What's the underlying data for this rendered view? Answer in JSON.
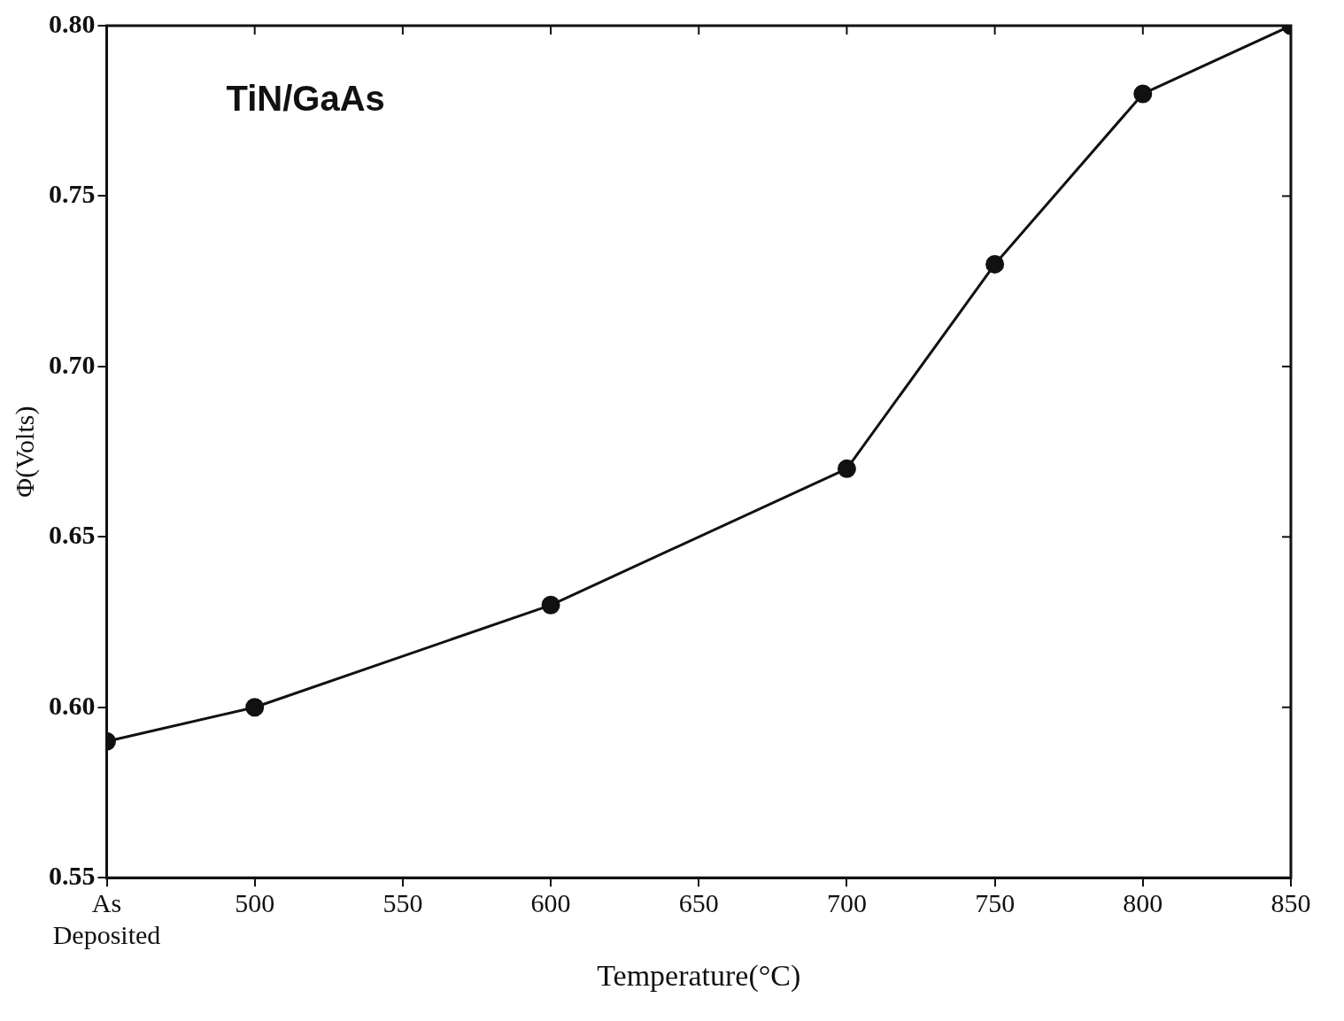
{
  "chart_data": {
    "type": "line",
    "xlabel": "Temperature(°C)",
    "ylabel": "Φ(Volts)",
    "annotations": [
      "TiN/GaAs"
    ],
    "x": [
      450,
      500,
      600,
      700,
      750,
      800,
      850
    ],
    "series": [
      {
        "color": "#111111",
        "values": [
          0.59,
          0.6,
          0.63,
          0.67,
          0.73,
          0.78,
          0.8
        ]
      }
    ],
    "xlim": [
      450,
      850
    ],
    "xticks": [
      {
        "value": 450,
        "label": "As\nDeposited"
      },
      500,
      550,
      600,
      650,
      700,
      750,
      800,
      850
    ],
    "ylim": [
      0.55,
      0.8
    ],
    "yticks": [
      0.55,
      {
        "value": 0.6,
        "label": "0.60"
      },
      0.65,
      {
        "value": 0.7,
        "label": "0.70"
      },
      0.75,
      {
        "value": 0.8,
        "label": "0.80"
      }
    ],
    "grid": false,
    "legend": false,
    "marker": "circle",
    "line_style": "solid"
  }
}
